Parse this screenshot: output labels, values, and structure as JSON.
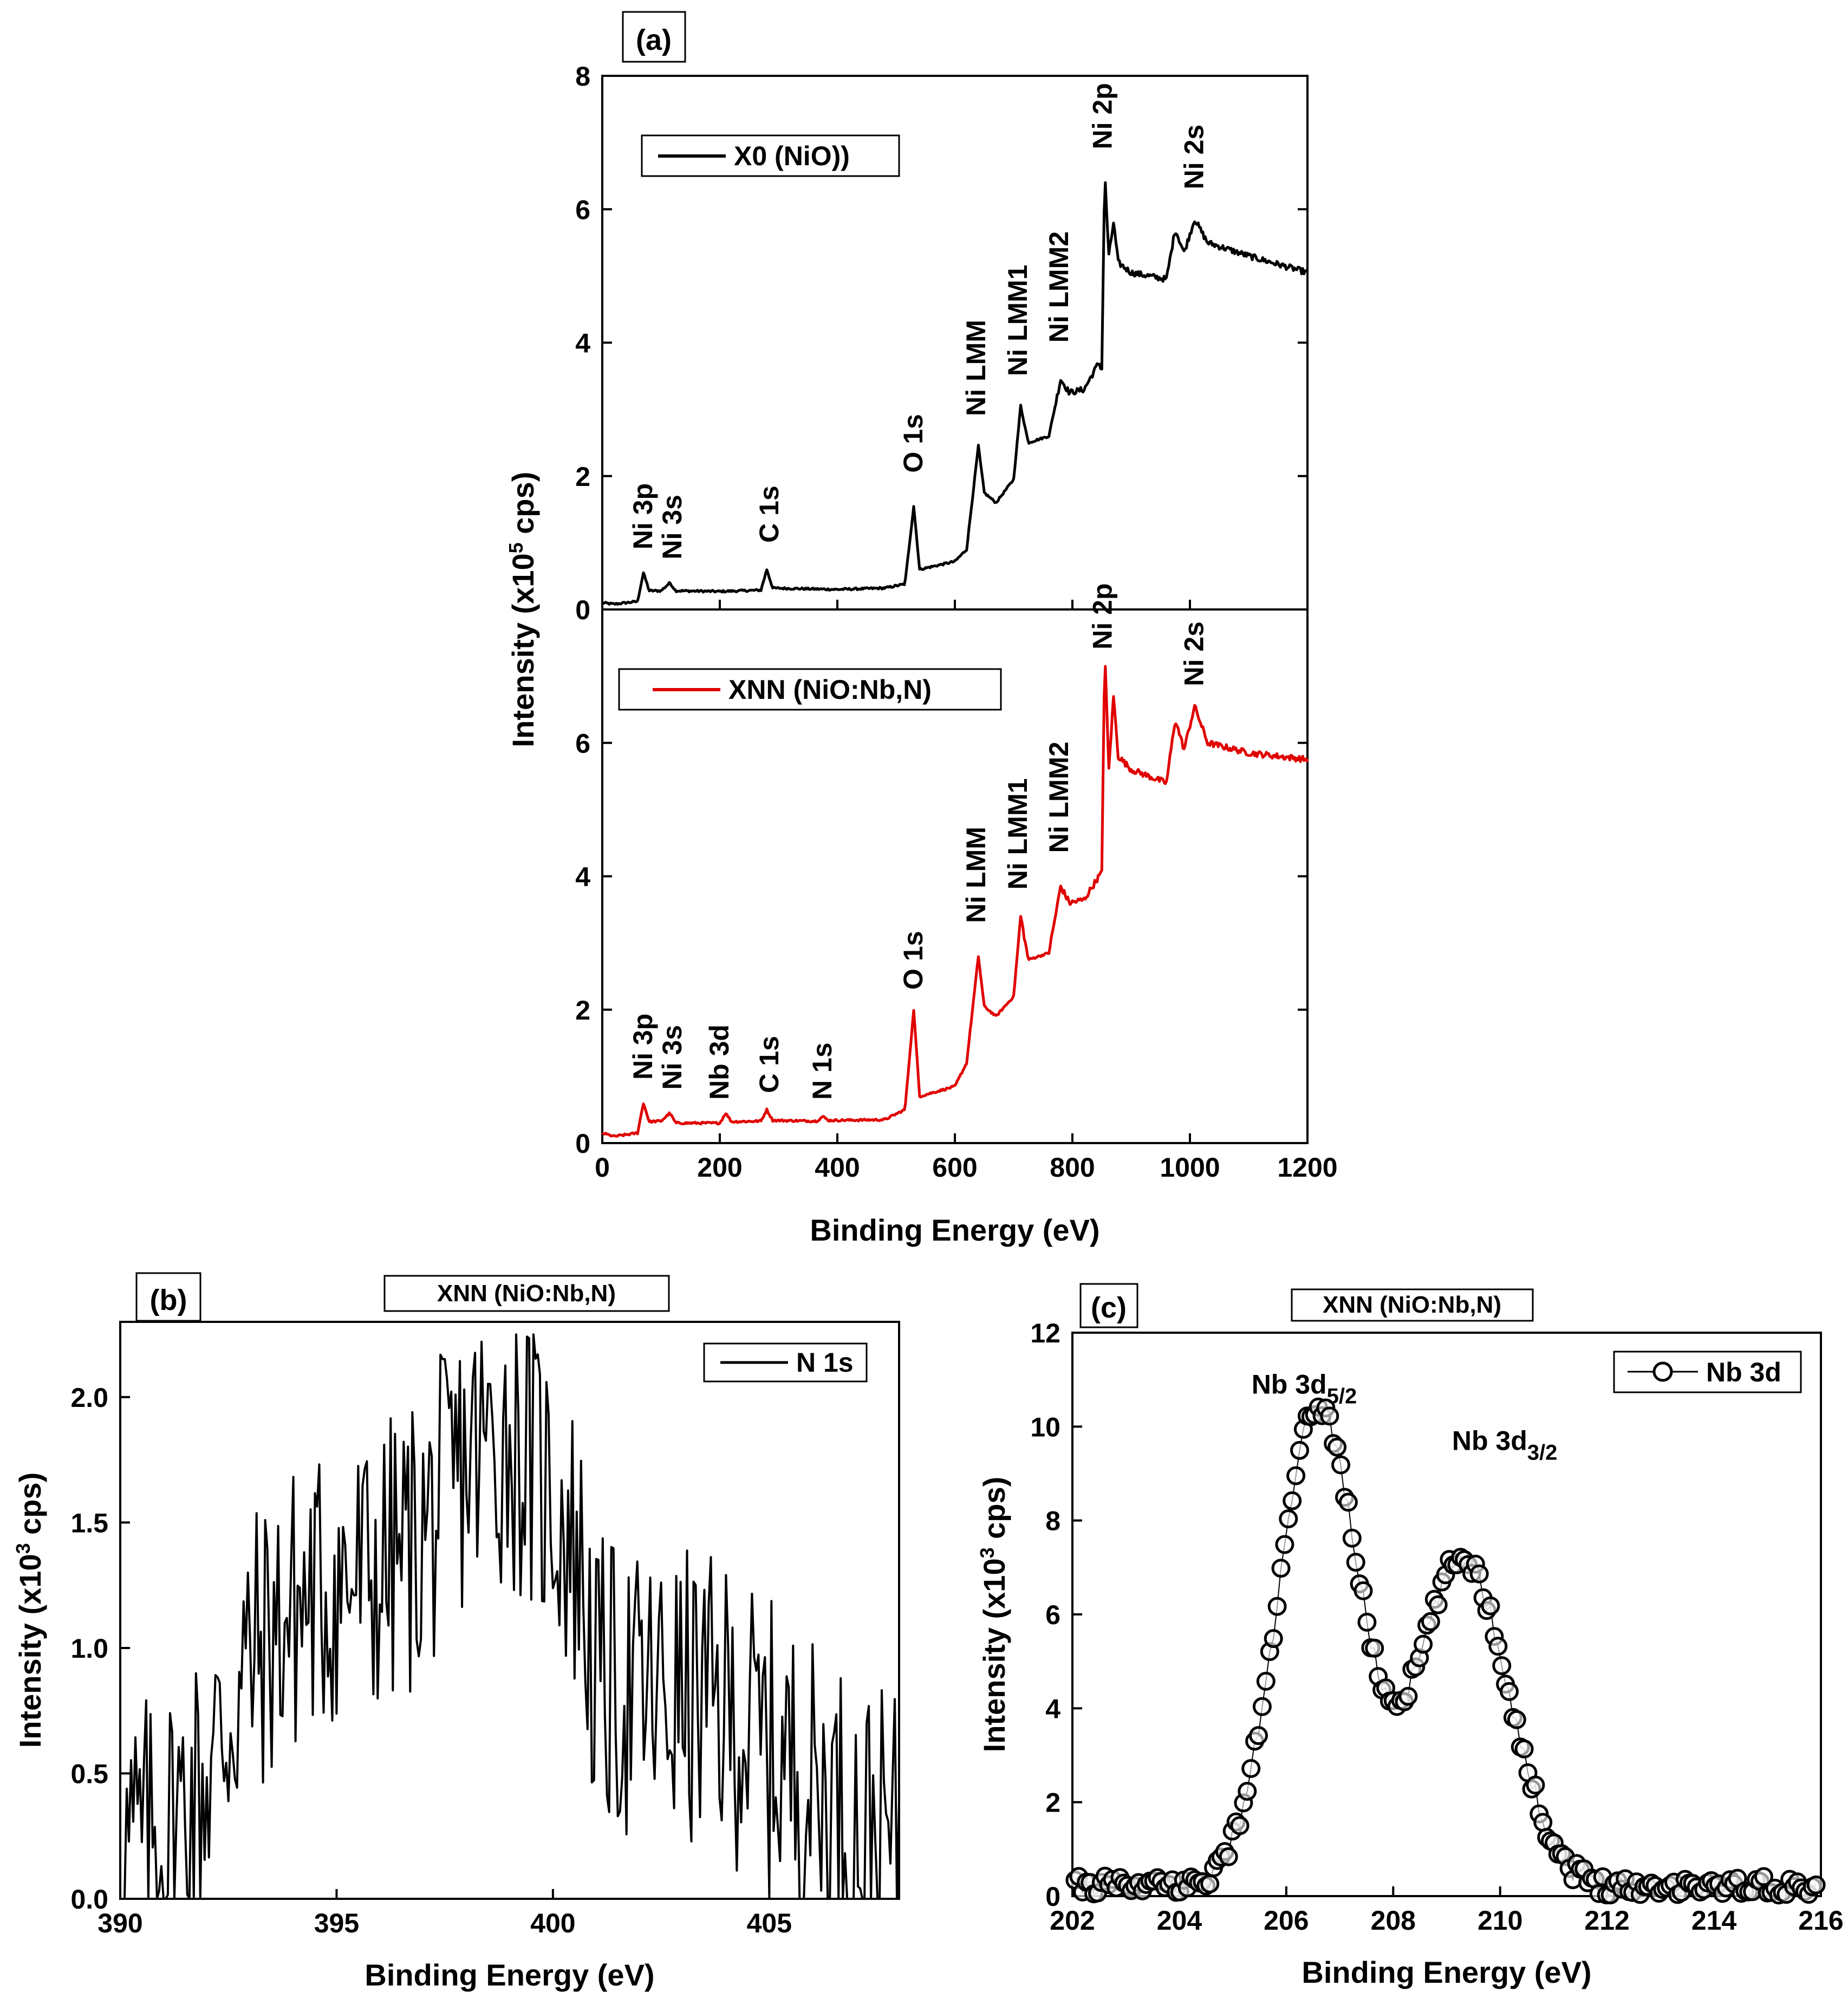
{
  "chart_data": [
    {
      "panel": "(a)",
      "type": "line",
      "xlabel": "Binding Energy  (eV)",
      "ylabel": "Intensity  (x10",
      "ylabel_sup": "5",
      "ylabel_tail": " cps)",
      "xlim": [
        0,
        1200
      ],
      "x_ticks": [
        0,
        200,
        400,
        600,
        800,
        1000,
        1200
      ],
      "subplots": [
        {
          "name": "X0 (NiO))",
          "color": "#000000",
          "ylim": [
            0,
            8
          ],
          "y_ticks": [
            0,
            2,
            4,
            6,
            8
          ],
          "baseline": [
            [
              0,
              0.1
            ],
            [
              20,
              0.08
            ],
            [
              60,
              0.12
            ],
            [
              70,
              0.55
            ],
            [
              80,
              0.28
            ],
            [
              100,
              0.28
            ],
            [
              115,
              0.4
            ],
            [
              125,
              0.28
            ],
            [
              200,
              0.27
            ],
            [
              270,
              0.29
            ],
            [
              280,
              0.6
            ],
            [
              290,
              0.32
            ],
            [
              400,
              0.3
            ],
            [
              480,
              0.32
            ],
            [
              515,
              0.38
            ],
            [
              530,
              1.55
            ],
            [
              540,
              0.6
            ],
            [
              600,
              0.72
            ],
            [
              620,
              0.9
            ],
            [
              640,
              2.45
            ],
            [
              650,
              1.75
            ],
            [
              670,
              1.6
            ],
            [
              700,
              1.95
            ],
            [
              712,
              3.05
            ],
            [
              725,
              2.5
            ],
            [
              760,
              2.6
            ],
            [
              780,
              3.45
            ],
            [
              795,
              3.25
            ],
            [
              820,
              3.3
            ],
            [
              845,
              3.7
            ],
            [
              850,
              3.6
            ],
            [
              855,
              6.55
            ],
            [
              862,
              5.3
            ],
            [
              870,
              5.8
            ],
            [
              878,
              5.2
            ],
            [
              900,
              5.05
            ],
            [
              960,
              4.95
            ],
            [
              975,
              5.7
            ],
            [
              990,
              5.35
            ],
            [
              1008,
              5.85
            ],
            [
              1030,
              5.5
            ],
            [
              1100,
              5.3
            ],
            [
              1200,
              5.05
            ]
          ],
          "peak_labels": [
            {
              "text": "Ni 3p",
              "x": 70,
              "y": 0.9
            },
            {
              "text": "Ni 3s",
              "x": 120,
              "y": 0.75
            },
            {
              "text": "C 1s",
              "x": 285,
              "y": 1.0
            },
            {
              "text": "O 1s",
              "x": 530,
              "y": 2.05
            },
            {
              "text": "Ni LMM",
              "x": 637,
              "y": 2.9
            },
            {
              "text": "Ni LMM1",
              "x": 708,
              "y": 3.5
            },
            {
              "text": "Ni LMM2",
              "x": 778,
              "y": 4.0
            },
            {
              "text": "Ni 2p",
              "x": 852,
              "y": 6.9
            },
            {
              "text": "Ni 2s",
              "x": 1008,
              "y": 6.3
            }
          ]
        },
        {
          "name": "XNN (NiO:Nb,N)",
          "color": "#e00000",
          "ylim": [
            0,
            8
          ],
          "y_ticks": [
            0,
            2,
            4,
            6
          ],
          "baseline": [
            [
              0,
              0.15
            ],
            [
              20,
              0.1
            ],
            [
              60,
              0.15
            ],
            [
              70,
              0.6
            ],
            [
              80,
              0.32
            ],
            [
              100,
              0.33
            ],
            [
              115,
              0.45
            ],
            [
              125,
              0.3
            ],
            [
              200,
              0.3
            ],
            [
              210,
              0.45
            ],
            [
              220,
              0.32
            ],
            [
              270,
              0.33
            ],
            [
              280,
              0.5
            ],
            [
              290,
              0.34
            ],
            [
              365,
              0.33
            ],
            [
              375,
              0.4
            ],
            [
              385,
              0.34
            ],
            [
              480,
              0.35
            ],
            [
              515,
              0.5
            ],
            [
              530,
              2.0
            ],
            [
              540,
              0.7
            ],
            [
              600,
              0.85
            ],
            [
              620,
              1.2
            ],
            [
              640,
              2.8
            ],
            [
              650,
              2.05
            ],
            [
              670,
              1.9
            ],
            [
              700,
              2.2
            ],
            [
              712,
              3.4
            ],
            [
              725,
              2.75
            ],
            [
              760,
              2.85
            ],
            [
              780,
              3.85
            ],
            [
              795,
              3.6
            ],
            [
              820,
              3.65
            ],
            [
              845,
              4.0
            ],
            [
              850,
              4.05
            ],
            [
              855,
              7.4
            ],
            [
              862,
              5.6
            ],
            [
              870,
              6.7
            ],
            [
              878,
              5.8
            ],
            [
              900,
              5.6
            ],
            [
              960,
              5.4
            ],
            [
              975,
              6.35
            ],
            [
              990,
              5.9
            ],
            [
              1008,
              6.55
            ],
            [
              1030,
              6.0
            ],
            [
              1100,
              5.85
            ],
            [
              1200,
              5.75
            ]
          ],
          "peak_labels": [
            {
              "text": "Ni 3p",
              "x": 70,
              "y": 0.95
            },
            {
              "text": "Ni 3s",
              "x": 120,
              "y": 0.8
            },
            {
              "text": "Nb 3d",
              "x": 200,
              "y": 0.65
            },
            {
              "text": "C 1s",
              "x": 285,
              "y": 0.75
            },
            {
              "text": "N 1s",
              "x": 375,
              "y": 0.65
            },
            {
              "text": "O 1s",
              "x": 530,
              "y": 2.3
            },
            {
              "text": "Ni LMM",
              "x": 637,
              "y": 3.3
            },
            {
              "text": "Ni LMM1",
              "x": 708,
              "y": 3.8
            },
            {
              "text": "Ni LMM2",
              "x": 778,
              "y": 4.35
            },
            {
              "text": "Ni 2p",
              "x": 852,
              "y": 7.4
            },
            {
              "text": "Ni 2s",
              "x": 1008,
              "y": 6.85
            }
          ]
        }
      ]
    },
    {
      "panel": "(b)",
      "type": "line",
      "title": "XNN (NiO:Nb,N)",
      "series_name": "N 1s",
      "color": "#000000",
      "xlabel": "Binding Energy  (eV)",
      "ylabel": "Intensity  (x10",
      "ylabel_sup": "3",
      "ylabel_tail": " cps)",
      "xlim": [
        390,
        408
      ],
      "ylim": [
        0,
        2.3
      ],
      "x_ticks": [
        390,
        395,
        400,
        405
      ],
      "y_ticks": [
        "0.0",
        "0.5",
        "1.0",
        "1.5",
        "2.0"
      ],
      "envelope": [
        [
          390,
          0.2
        ],
        [
          391,
          0.25
        ],
        [
          392,
          0.5
        ],
        [
          393,
          0.95
        ],
        [
          394,
          1.15
        ],
        [
          395,
          1.25
        ],
        [
          396,
          1.3
        ],
        [
          397,
          1.45
        ],
        [
          398,
          1.75
        ],
        [
          399,
          1.85
        ],
        [
          400,
          1.6
        ],
        [
          400.6,
          1.35
        ],
        [
          401,
          0.85
        ],
        [
          402,
          0.8
        ],
        [
          403,
          0.8
        ],
        [
          404,
          0.75
        ],
        [
          405,
          0.6
        ],
        [
          406,
          0.45
        ],
        [
          407,
          0.3
        ],
        [
          408,
          0.2
        ]
      ],
      "noise_amplitude": 0.6
    },
    {
      "panel": "(c)",
      "type": "scatter",
      "title": "XNN (NiO:Nb,N)",
      "series_name": "Nb 3d",
      "color": "#000000",
      "xlabel": "Binding Energy  (eV)",
      "ylabel": "Intensity  (x10",
      "ylabel_sup": "3",
      "ylabel_tail": " cps)",
      "xlim": [
        202,
        216
      ],
      "ylim": [
        0,
        12
      ],
      "x_ticks": [
        202,
        204,
        206,
        208,
        210,
        212,
        214,
        216
      ],
      "y_ticks": [
        0,
        2,
        4,
        6,
        8,
        10,
        12
      ],
      "peaks": [
        {
          "center": 206.6,
          "height": 10.2,
          "sigma": 0.75
        },
        {
          "center": 209.3,
          "height": 7.0,
          "sigma": 0.85
        }
      ],
      "background": 0.2,
      "step": 0.07,
      "annotations": [
        {
          "text": "Nb 3d",
          "sub": "5/2",
          "x": 205.35,
          "y": 10.7
        },
        {
          "text": "Nb 3d",
          "sub": "3/2",
          "x": 209.1,
          "y": 9.5
        }
      ]
    }
  ]
}
